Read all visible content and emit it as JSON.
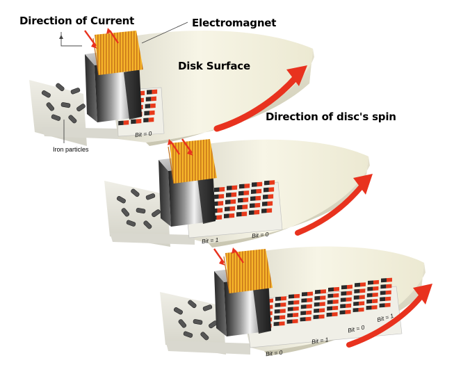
{
  "labels": {
    "direction_of_current": "Direction of Current",
    "electromagnet": "Electromagnet",
    "disk_surface": "Disk Surface",
    "direction_of_spin": "Direction of disc's spin",
    "iron_particles": "Iron particles"
  },
  "panels": [
    {
      "bits": [
        "Bit = 0"
      ]
    },
    {
      "bits": [
        "Bit = 1",
        "Bit = 0"
      ]
    },
    {
      "bits": [
        "Bit = 0",
        "Bit = 1",
        "Bit = 0",
        "Bit = 1"
      ]
    }
  ],
  "colors": {
    "arrow": "#e8321e",
    "coil": "#f2a91a",
    "magnet_dark": "#2b2b2b",
    "bit_red": "#e83a1c",
    "bit_black": "#2a2a2a",
    "disk": "#f3f0de"
  }
}
